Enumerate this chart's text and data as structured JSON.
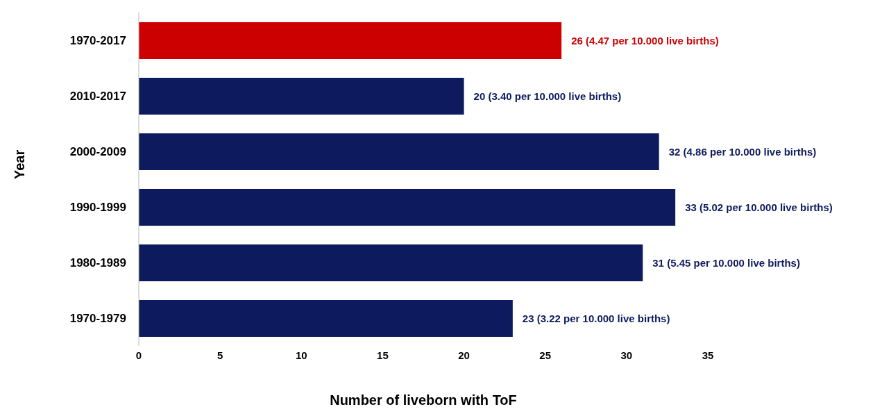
{
  "chart_data": {
    "type": "bar",
    "orientation": "horizontal",
    "xlabel": "Number of liveborn with ToF",
    "ylabel": "Year",
    "categories": [
      "1970-2017",
      "2010-2017",
      "2000-2009",
      "1990-1999",
      "1980-1989",
      "1970-1979"
    ],
    "values": [
      26,
      20,
      32,
      33,
      31,
      23
    ],
    "colors": [
      "#cc0000",
      "#0d1b5e",
      "#0d1b5e",
      "#0d1b5e",
      "#0d1b5e",
      "#0d1b5e"
    ],
    "value_labels": [
      "26 (4.47 per 10.000 live births)",
      "20 (3.40 per 10.000 live births)",
      "32 (4.86 per 10.000 live births)",
      "33 (5.02 per 10.000 live births)",
      "31 (5.45 per 10.000 live births)",
      "23 (3.22 per 10.000 live births)"
    ],
    "xlim": [
      0,
      35
    ],
    "xticks": [
      0,
      5,
      10,
      15,
      20,
      25,
      30,
      35
    ],
    "grid": false,
    "legend": false
  }
}
